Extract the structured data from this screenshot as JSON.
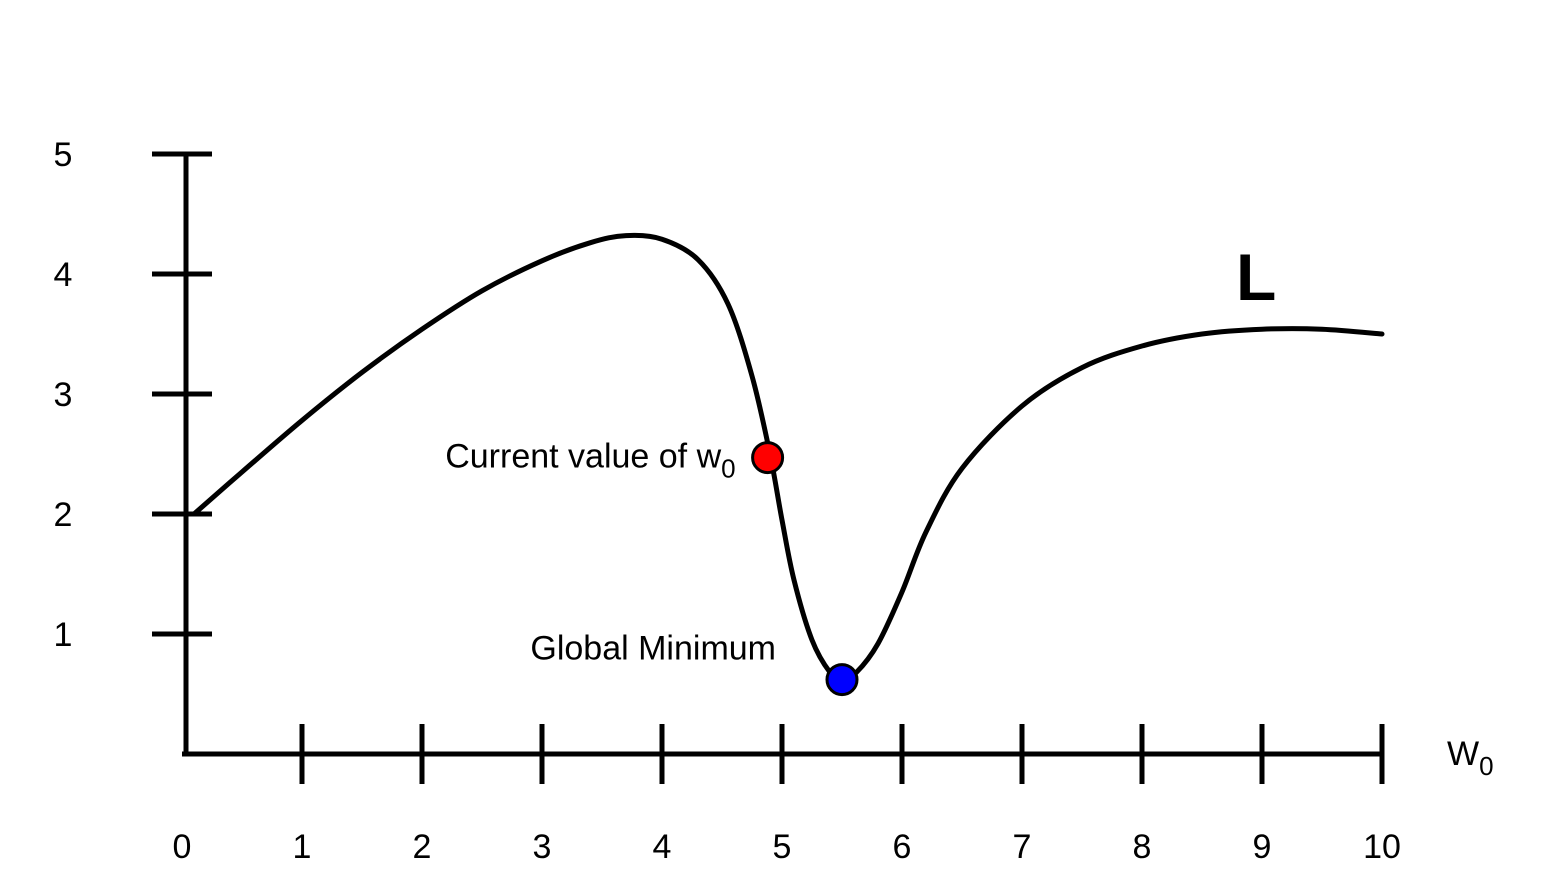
{
  "chart_data": {
    "type": "line",
    "title": "",
    "xlabel": "W",
    "xlabel_sub": "0",
    "ylabel": "",
    "xlim": [
      0,
      10
    ],
    "ylim": [
      0,
      5
    ],
    "x_ticks": [
      "0",
      "1",
      "2",
      "3",
      "4",
      "5",
      "6",
      "7",
      "8",
      "9",
      "10"
    ],
    "y_ticks": [
      "1",
      "2",
      "3",
      "4",
      "5"
    ],
    "grid": false,
    "series": [
      {
        "name": "L",
        "color": "#000000",
        "points": [
          [
            0.1,
            2.0
          ],
          [
            0.5,
            2.35
          ],
          [
            1.0,
            2.78
          ],
          [
            1.5,
            3.18
          ],
          [
            2.0,
            3.54
          ],
          [
            2.5,
            3.86
          ],
          [
            3.0,
            4.11
          ],
          [
            3.4,
            4.26
          ],
          [
            3.7,
            4.32
          ],
          [
            4.0,
            4.29
          ],
          [
            4.3,
            4.12
          ],
          [
            4.55,
            3.75
          ],
          [
            4.75,
            3.15
          ],
          [
            4.9,
            2.5
          ],
          [
            5.0,
            1.95
          ],
          [
            5.1,
            1.45
          ],
          [
            5.25,
            0.95
          ],
          [
            5.4,
            0.68
          ],
          [
            5.5,
            0.62
          ],
          [
            5.62,
            0.68
          ],
          [
            5.8,
            0.92
          ],
          [
            6.0,
            1.35
          ],
          [
            6.2,
            1.85
          ],
          [
            6.5,
            2.38
          ],
          [
            7.0,
            2.9
          ],
          [
            7.5,
            3.22
          ],
          [
            8.0,
            3.4
          ],
          [
            8.5,
            3.5
          ],
          [
            9.0,
            3.54
          ],
          [
            9.5,
            3.54
          ],
          [
            10.0,
            3.5
          ]
        ]
      }
    ],
    "markers": [
      {
        "id": "current",
        "x": 4.88,
        "y": 2.47,
        "color": "#ff0000",
        "label": "Current value of w",
        "label_sub": "0"
      },
      {
        "id": "minimum",
        "x": 5.5,
        "y": 0.62,
        "color": "#0000ff",
        "label": "Global Minimum",
        "label_sub": ""
      }
    ],
    "curve_label": "L"
  }
}
